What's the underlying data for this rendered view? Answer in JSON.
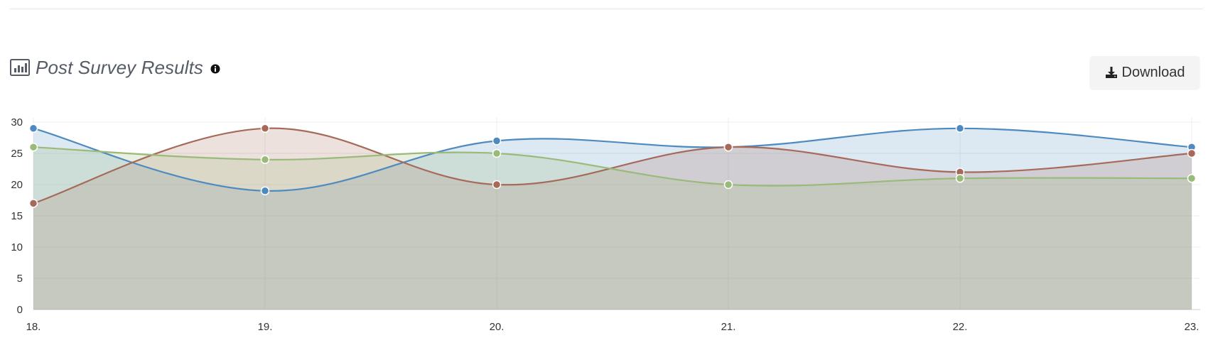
{
  "header": {
    "title": "Post Survey Results",
    "icon": "bar-chart-icon",
    "info_icon": "info-icon"
  },
  "toolbar": {
    "download_label": "Download",
    "download_icon": "download-icon"
  },
  "chart_data": {
    "type": "area",
    "title": "Post Survey Results",
    "xlabel": "",
    "ylabel": "",
    "categories": [
      "18.",
      "19.",
      "20.",
      "21.",
      "22.",
      "23."
    ],
    "y_ticks": [
      0,
      5,
      10,
      15,
      20,
      25,
      30
    ],
    "ylim": [
      0,
      30
    ],
    "grid": true,
    "curve": "smooth",
    "series": [
      {
        "values": [
          29,
          19,
          27,
          26,
          29,
          26
        ],
        "color": "#4e8abf",
        "fill": "rgba(78,138,191,0.20)"
      },
      {
        "values": [
          17,
          29,
          20,
          26,
          22,
          25
        ],
        "color": "#a7695a",
        "fill": "rgba(167,105,90,0.20)"
      },
      {
        "values": [
          26,
          24,
          25,
          20,
          21,
          21
        ],
        "color": "#9aba7a",
        "fill": "rgba(154,186,122,0.22)"
      }
    ]
  }
}
